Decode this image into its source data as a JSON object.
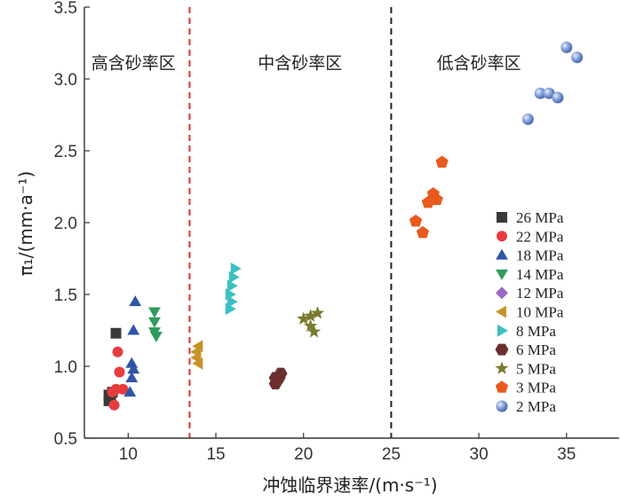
{
  "chart_data": {
    "type": "scatter",
    "xlabel": "冲蚀临界速率/(m·s⁻¹)",
    "ylabel": "π₁/(mm·a⁻¹)",
    "xlim": [
      7.5,
      38
    ],
    "ylim": [
      0.5,
      3.5
    ],
    "x_ticks": [
      10,
      15,
      20,
      25,
      30,
      35
    ],
    "y_ticks": [
      0.5,
      1.0,
      1.5,
      2.0,
      2.5,
      3.0,
      3.5
    ],
    "x_tick_labels": [
      "10",
      "15",
      "20",
      "25",
      "30",
      "35"
    ],
    "y_tick_labels": [
      "0.5",
      "1.0",
      "1.5",
      "2.0",
      "2.5",
      "3.0",
      "3.5"
    ],
    "grid": false,
    "legend_position": "right",
    "dividers": [
      {
        "x": 13.5,
        "color": "#e03030",
        "style": "dashed"
      },
      {
        "x": 25.0,
        "color": "#222222",
        "style": "dashed"
      }
    ],
    "regions": [
      {
        "label": "高含砂率区",
        "x": 10.3,
        "y": 3.07
      },
      {
        "label": "中含砂率区",
        "x": 19.8,
        "y": 3.07
      },
      {
        "label": "低含砂率区",
        "x": 30.0,
        "y": 3.07
      }
    ],
    "series": [
      {
        "name": "26 MPa",
        "marker": "square",
        "color": "#3a3a3a",
        "points": [
          [
            9.3,
            1.23
          ],
          [
            8.9,
            0.76
          ],
          [
            8.9,
            0.8
          ],
          [
            9.0,
            0.78
          ],
          [
            9.1,
            0.82
          ]
        ]
      },
      {
        "name": "22 MPa",
        "marker": "circle",
        "color": "#e83c3c",
        "points": [
          [
            9.4,
            1.1
          ],
          [
            9.5,
            0.96
          ],
          [
            9.1,
            0.82
          ],
          [
            9.3,
            0.84
          ],
          [
            9.7,
            0.84
          ],
          [
            9.2,
            0.73
          ]
        ]
      },
      {
        "name": "18 MPa",
        "marker": "triangle-up",
        "color": "#2e55a8",
        "points": [
          [
            10.4,
            1.45
          ],
          [
            10.3,
            1.25
          ],
          [
            10.2,
            1.02
          ],
          [
            10.3,
            0.98
          ],
          [
            10.2,
            0.92
          ],
          [
            10.1,
            0.82
          ]
        ]
      },
      {
        "name": "14 MPa",
        "marker": "triangle-down",
        "color": "#2e9c5a",
        "points": [
          [
            11.5,
            1.38
          ],
          [
            11.5,
            1.31
          ],
          [
            11.5,
            1.24
          ],
          [
            11.6,
            1.21
          ]
        ]
      },
      {
        "name": "12 MPa",
        "marker": "diamond",
        "color": "#9966c4",
        "points": []
      },
      {
        "name": "10 MPa",
        "marker": "triangle-left",
        "color": "#c89227",
        "points": [
          [
            14.0,
            1.14
          ],
          [
            13.9,
            1.1
          ],
          [
            13.9,
            1.06
          ],
          [
            14.0,
            1.02
          ]
        ]
      },
      {
        "name": "8 MPa",
        "marker": "triangle-right",
        "color": "#3cc0c0",
        "points": [
          [
            16.1,
            1.68
          ],
          [
            16.0,
            1.62
          ],
          [
            15.9,
            1.56
          ],
          [
            15.8,
            1.5
          ],
          [
            15.9,
            1.45
          ],
          [
            15.8,
            1.4
          ]
        ]
      },
      {
        "name": "6 MPa",
        "marker": "hexagon",
        "color": "#6b2f2f",
        "points": [
          [
            18.4,
            0.92
          ],
          [
            18.7,
            0.95
          ],
          [
            18.6,
            0.92
          ],
          [
            18.4,
            0.88
          ]
        ]
      },
      {
        "name": "5 MPa",
        "marker": "star",
        "color": "#7a7a2e",
        "points": [
          [
            20.0,
            1.33
          ],
          [
            20.4,
            1.35
          ],
          [
            20.8,
            1.37
          ],
          [
            20.4,
            1.28
          ],
          [
            20.6,
            1.24
          ]
        ]
      },
      {
        "name": "3 MPa",
        "marker": "pentagon",
        "color": "#e85a1e",
        "points": [
          [
            27.9,
            2.42
          ],
          [
            27.4,
            2.2
          ],
          [
            27.6,
            2.16
          ],
          [
            27.1,
            2.14
          ],
          [
            26.4,
            2.01
          ],
          [
            26.8,
            1.93
          ]
        ]
      },
      {
        "name": "2 MPa",
        "marker": "sphere",
        "color": "#6f8fd0",
        "points": [
          [
            35.0,
            3.22
          ],
          [
            35.6,
            3.15
          ],
          [
            33.5,
            2.9
          ],
          [
            34.0,
            2.9
          ],
          [
            34.5,
            2.87
          ],
          [
            32.8,
            2.72
          ]
        ]
      }
    ]
  }
}
